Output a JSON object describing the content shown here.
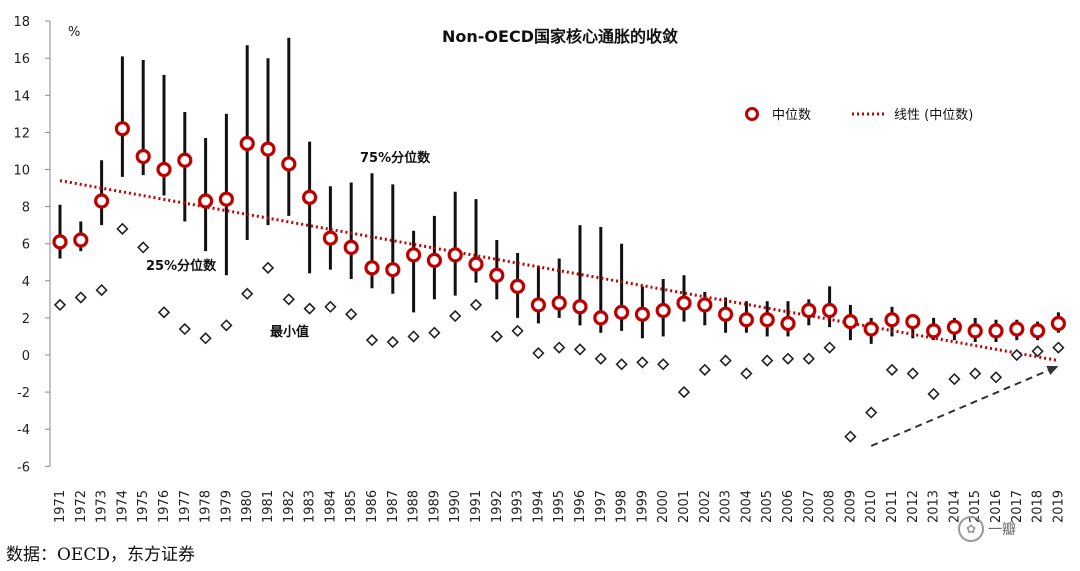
{
  "chart_data": {
    "type": "scatter",
    "title": "Non-OECD国家核心通胀的收敛",
    "ylabel": "%",
    "ylim": [
      -6,
      18
    ],
    "yticks": [
      -6,
      -4,
      -2,
      0,
      2,
      4,
      6,
      8,
      10,
      12,
      14,
      16,
      18
    ],
    "grid": false,
    "legend_position": "top-right",
    "x": [
      "1971",
      "1972",
      "1973",
      "1974",
      "1975",
      "1976",
      "1977",
      "1978",
      "1979",
      "1980",
      "1981",
      "1982",
      "1983",
      "1984",
      "1985",
      "1986",
      "1987",
      "1988",
      "1989",
      "1990",
      "1991",
      "1992",
      "1993",
      "1994",
      "1995",
      "1996",
      "1997",
      "1998",
      "1999",
      "2000",
      "2001",
      "2002",
      "2003",
      "2004",
      "2005",
      "2006",
      "2007",
      "2008",
      "2009",
      "2010",
      "2011",
      "2012",
      "2013",
      "2014",
      "2015",
      "2016",
      "2017",
      "2018",
      "2019"
    ],
    "series": [
      {
        "name": "中位数",
        "color": "#c00000",
        "values": [
          6.1,
          6.2,
          8.3,
          12.2,
          10.7,
          10.0,
          10.5,
          8.3,
          8.4,
          11.4,
          11.1,
          10.3,
          8.5,
          6.3,
          5.8,
          4.7,
          4.6,
          5.4,
          5.1,
          5.4,
          4.9,
          4.3,
          3.7,
          2.7,
          2.8,
          2.6,
          2.0,
          2.3,
          2.2,
          2.4,
          2.8,
          2.7,
          2.2,
          1.9,
          1.9,
          1.7,
          2.4,
          2.4,
          1.8,
          1.4,
          1.9,
          1.8,
          1.3,
          1.5,
          1.3,
          1.3,
          1.4,
          1.3,
          1.7
        ]
      },
      {
        "name": "25%分位数",
        "values": [
          5.2,
          5.6,
          7.0,
          9.6,
          9.7,
          8.6,
          7.2,
          5.6,
          4.3,
          6.2,
          7.0,
          7.5,
          4.4,
          4.6,
          4.1,
          3.6,
          3.3,
          2.3,
          3.0,
          3.2,
          3.9,
          3.0,
          2.0,
          1.7,
          2.0,
          1.6,
          1.2,
          1.3,
          0.9,
          1.0,
          1.8,
          1.6,
          1.2,
          1.2,
          1.0,
          1.0,
          1.6,
          1.5,
          0.8,
          0.6,
          1.0,
          0.9,
          0.8,
          0.8,
          0.7,
          0.7,
          0.8,
          0.8,
          1.2
        ]
      },
      {
        "name": "75%分位数",
        "values": [
          8.1,
          7.2,
          10.5,
          16.1,
          15.9,
          15.1,
          13.1,
          11.7,
          13.0,
          16.7,
          16.0,
          17.1,
          11.5,
          9.1,
          9.3,
          9.8,
          9.2,
          6.7,
          7.5,
          8.8,
          8.4,
          6.2,
          5.5,
          4.8,
          5.2,
          7.0,
          6.9,
          6.0,
          3.7,
          4.1,
          4.3,
          3.4,
          3.1,
          2.9,
          2.9,
          2.9,
          3.0,
          3.7,
          2.7,
          2.0,
          2.6,
          2.2,
          2.0,
          2.0,
          2.0,
          1.9,
          1.9,
          1.8,
          2.3
        ]
      },
      {
        "name": "最小值",
        "values": [
          2.7,
          3.1,
          3.5,
          6.8,
          5.8,
          2.3,
          1.4,
          0.9,
          1.6,
          3.3,
          4.7,
          3.0,
          2.5,
          2.6,
          2.2,
          0.8,
          0.7,
          1.0,
          1.2,
          2.1,
          2.7,
          1.0,
          1.3,
          0.1,
          0.4,
          0.3,
          -0.2,
          -0.5,
          -0.4,
          -0.5,
          -2.0,
          -0.8,
          -0.3,
          -1.0,
          -0.3,
          -0.2,
          -0.2,
          0.4,
          -4.4,
          -3.1,
          -0.8,
          -1.0,
          -2.1,
          -1.3,
          -1.0,
          -1.2,
          0.0,
          0.2,
          0.4
        ]
      },
      {
        "name": "线性（中位数）",
        "type": "trendline",
        "color": "#c00000",
        "start": [
          1971,
          9.4
        ],
        "end": [
          2019,
          -0.3
        ]
      }
    ],
    "annotations": {
      "p75_label": "75%分位数",
      "p25_label": "25%分位数",
      "min_label": "最小值"
    },
    "legend": {
      "median": "中位数",
      "trend": "线性 (中位数)"
    },
    "arrow": {
      "from": [
        2010,
        -4.9
      ],
      "to": [
        2019,
        -0.6
      ],
      "style": "dashed",
      "color": "#333333"
    }
  },
  "source": "数据：OECD，东方证券",
  "watermark": "一瓣"
}
